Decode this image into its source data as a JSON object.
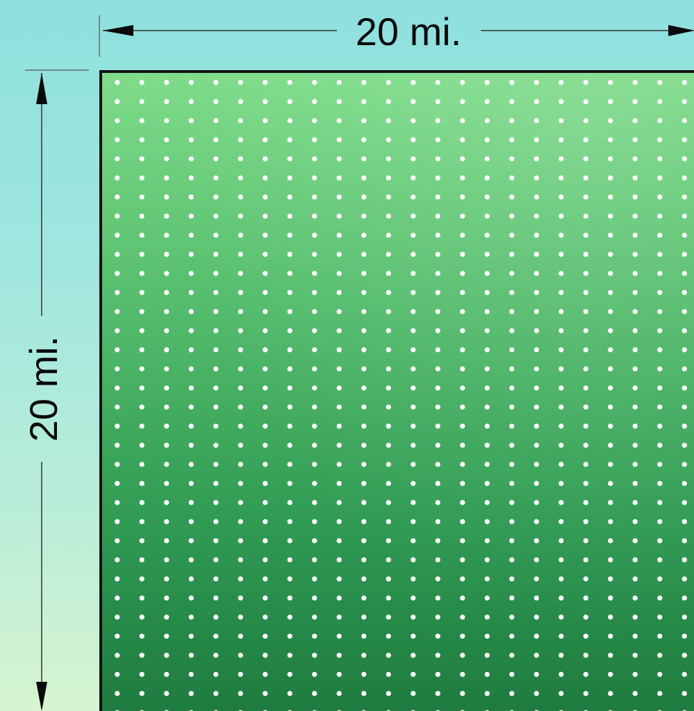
{
  "dimensions": {
    "width_label": "20 mi.",
    "height_label": "20 mi."
  },
  "colors": {
    "sky_top": "#8ee0de",
    "sky_bottom": "#d6f4cf",
    "field_light": "#7fdc8a",
    "field_dark": "#1e7a3f",
    "dot": "#ffffff",
    "outline": "#111111"
  }
}
